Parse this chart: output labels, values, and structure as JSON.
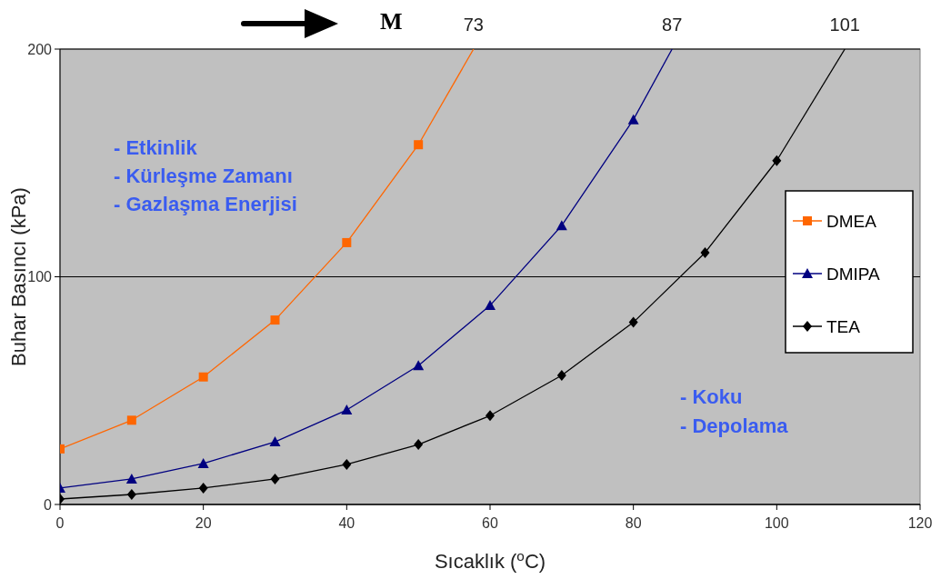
{
  "chart_data": {
    "type": "line",
    "xlabel": "Sıcaklık ($^{o}$C)",
    "ylabel": "Buhar Basıncı (kPa)",
    "xlim": [
      0,
      120
    ],
    "xticks": [
      0,
      20,
      40,
      60,
      80,
      100,
      120
    ],
    "ylim": [
      0,
      200
    ],
    "yticks": [
      0,
      100,
      200
    ],
    "grid": "y",
    "legend": "right",
    "line_style": "solid",
    "series": [
      {
        "name": "DMEA",
        "color": "#ff6600",
        "marker": "square",
        "x": [
          0,
          10,
          20,
          30,
          40,
          50
        ],
        "values": [
          24.4,
          37,
          56,
          81,
          115,
          158
        ]
      },
      {
        "name": "DMIPA",
        "color": "#000080",
        "marker": "triangle",
        "x": [
          0,
          10,
          20,
          30,
          40,
          50,
          60,
          70,
          80
        ],
        "values": [
          7.2,
          11.2,
          18,
          27.5,
          41.5,
          61,
          87.4,
          122.5,
          169
        ]
      },
      {
        "name": "TEA",
        "color": "#000000",
        "marker": "diamond",
        "x": [
          0,
          10,
          20,
          30,
          40,
          50,
          60,
          70,
          80,
          90,
          100
        ],
        "values": [
          2.4,
          4.4,
          7.2,
          11.2,
          17.6,
          26.3,
          39,
          56.7,
          80,
          110.6,
          151
        ]
      },
      {
        "color": "#ff6600",
        "marker": "none",
        "x": [
          50,
          57.7
        ],
        "values": [
          158,
          200
        ]
      },
      {
        "color": "#000080",
        "marker": "none",
        "x": [
          80,
          85.4
        ],
        "values": [
          169,
          200
        ]
      },
      {
        "color": "#000000",
        "marker": "none",
        "x": [
          100,
          109.5
        ],
        "values": [
          151,
          200
        ]
      }
    ],
    "annotations": [
      {
        "text": "73",
        "x": 57.7,
        "y": 200
      },
      {
        "text": "87",
        "x": 85.4,
        "y": 200
      },
      {
        "text": "101",
        "x": 109.5,
        "y": 200
      },
      "M",
      "- Etkinlik\n- Kürleşme Zamanı\n- Gazlaşma Enerjisi",
      "- Koku\n- Depolama"
    ]
  }
}
